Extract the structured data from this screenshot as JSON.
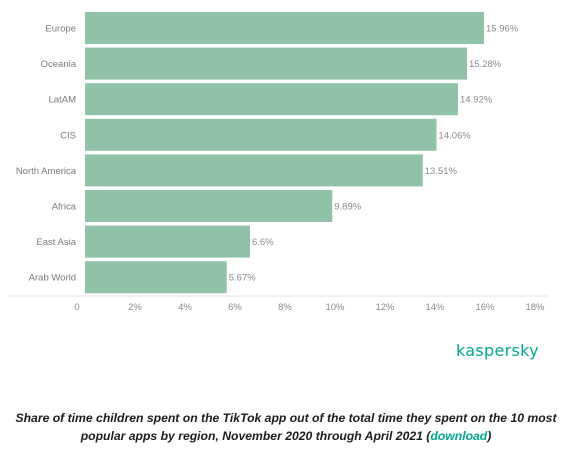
{
  "chart_data": {
    "type": "bar",
    "orientation": "horizontal",
    "categories": [
      "Europe",
      "Oceania",
      "LatAM",
      "CIS",
      "North America",
      "Africa",
      "East Asia",
      "Arab World"
    ],
    "values": [
      15.96,
      15.28,
      14.92,
      14.06,
      13.51,
      9.89,
      6.6,
      5.67
    ],
    "value_labels": [
      "15.96%",
      "15.28%",
      "14.92%",
      "14.06%",
      "13.51%",
      "9.89%",
      "6.6%",
      "5.67%"
    ],
    "x_ticks": [
      "0",
      "2%",
      "4%",
      "6%",
      "8%",
      "10%",
      "12%",
      "14%",
      "16%",
      "18%"
    ],
    "xlim": [
      0,
      18
    ],
    "grid": false,
    "bar_color": "#8fc2a7"
  },
  "brand": {
    "name": "kaspersky",
    "color": "#00a88e"
  },
  "caption": {
    "text": "Share of time children spent on the TikTok app out of the total time they spent on the 10 most popular apps by region, November 2020 through April 2021 (",
    "link_label": "download",
    "suffix": ")"
  }
}
